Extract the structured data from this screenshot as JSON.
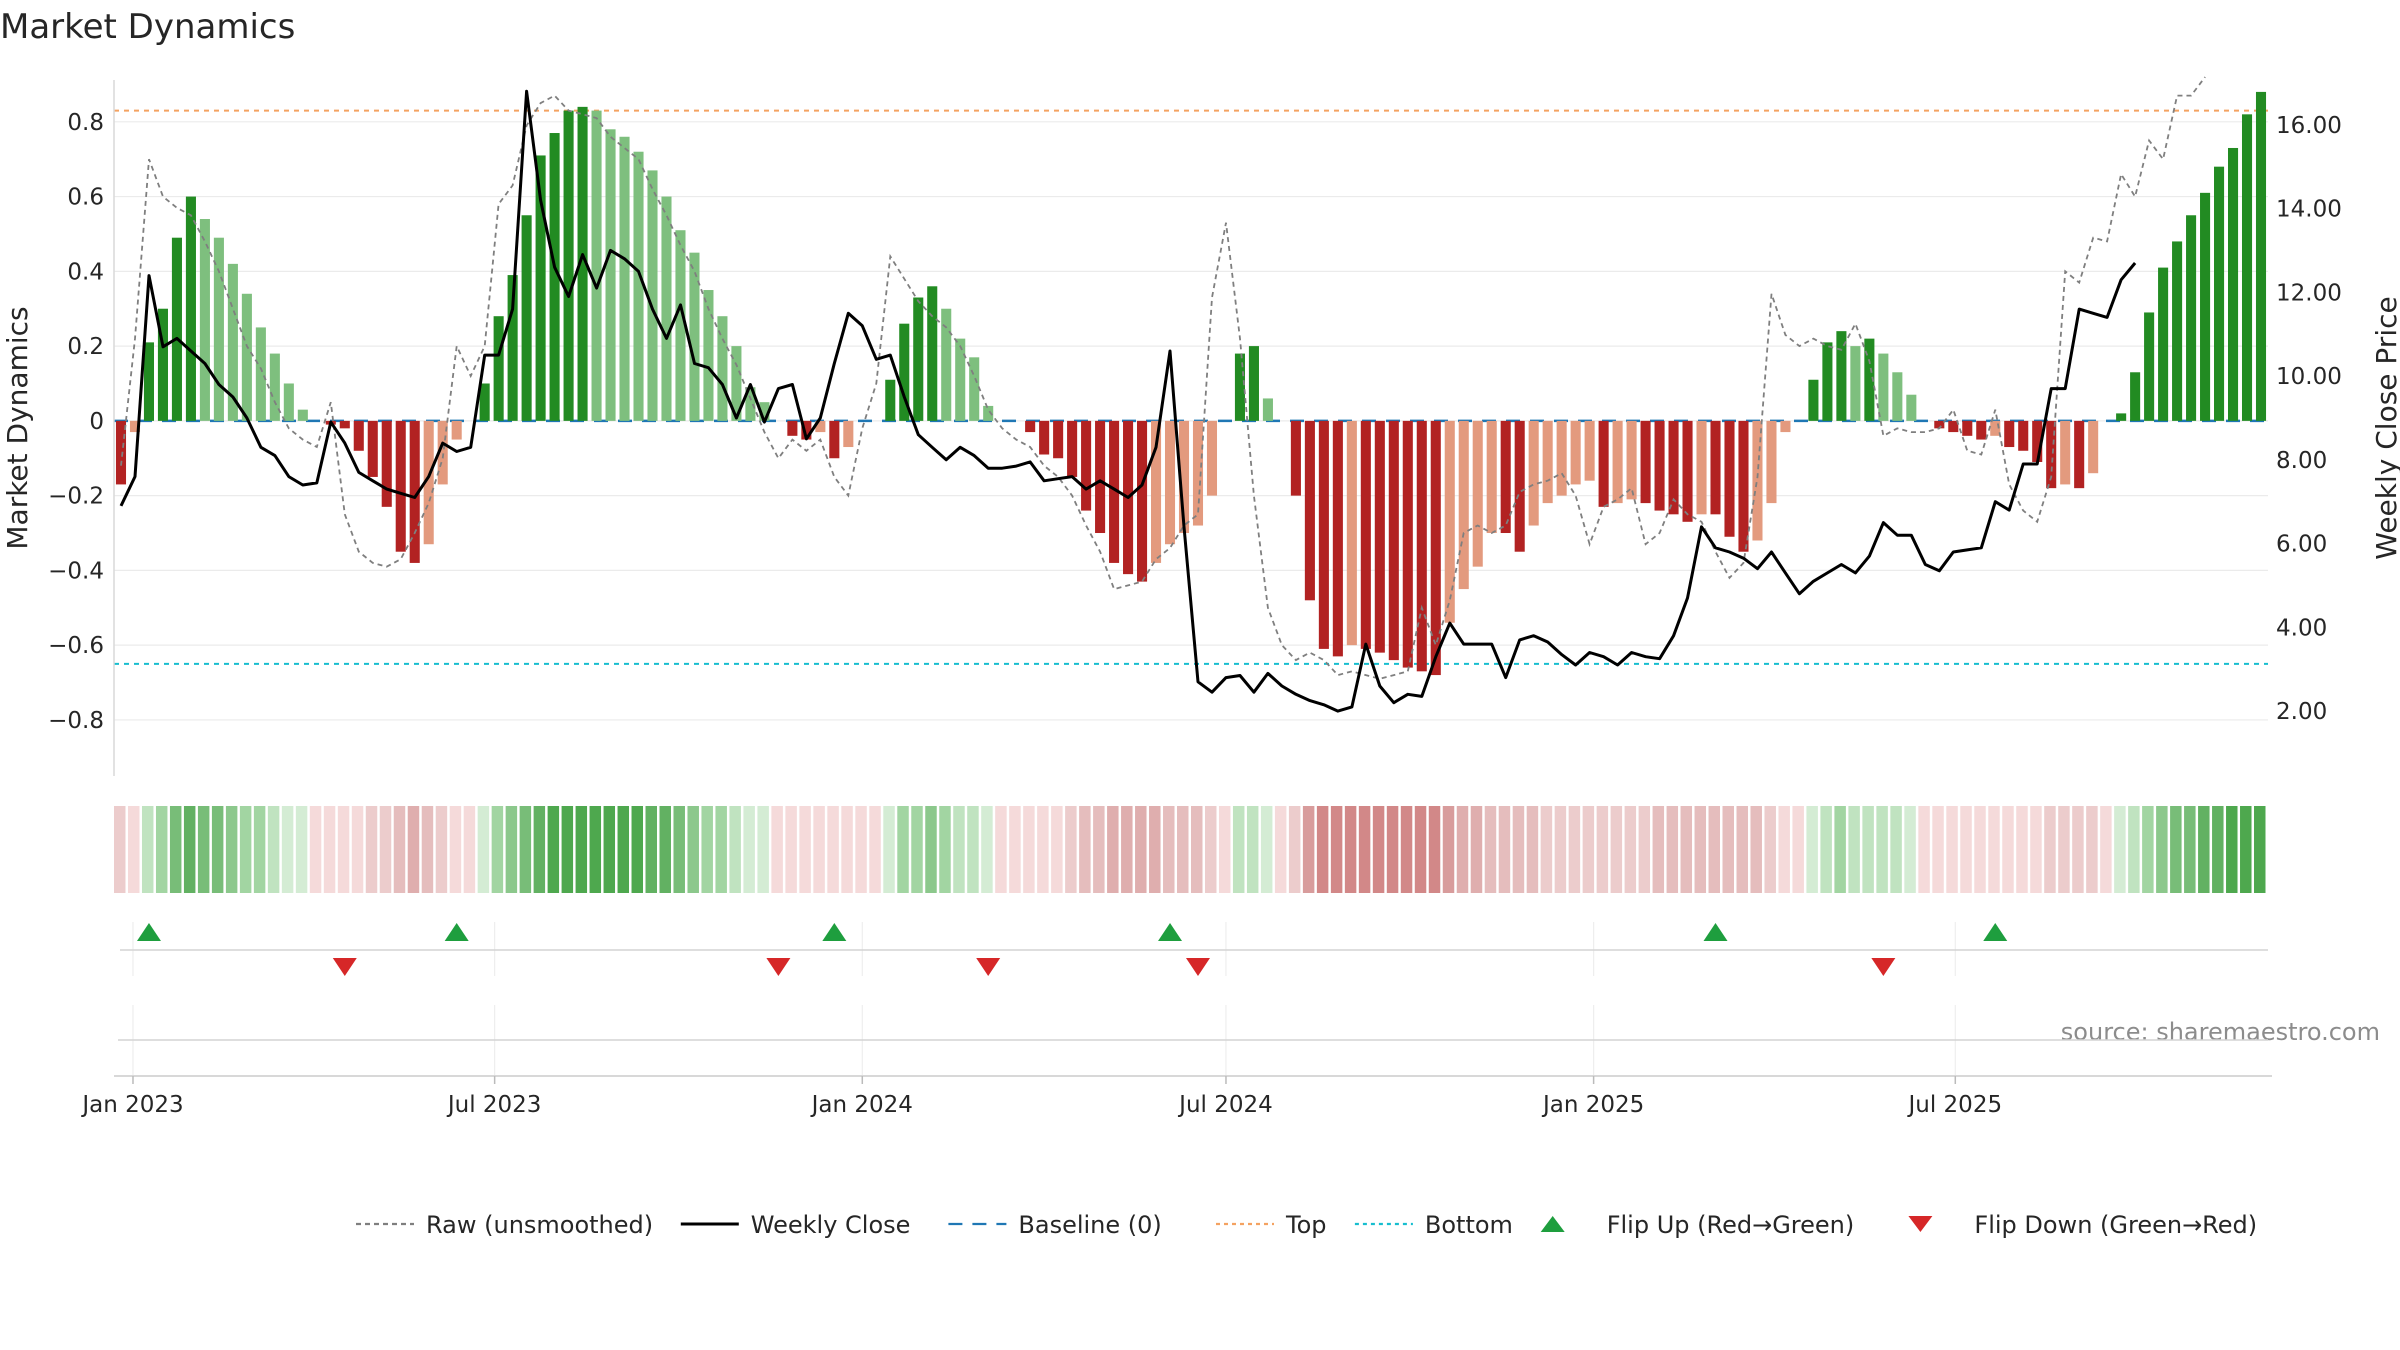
{
  "chart_data": {
    "type": "bar",
    "title": "Market Dynamics",
    "ylabel_left": "Market Dynamics",
    "ylabel_right": "Weekly Close Price",
    "source": "source: sharemaestro.com",
    "left_ylim": [
      -0.95,
      0.96
    ],
    "left_yticks": [
      -0.8,
      -0.6,
      -0.4,
      -0.2,
      0,
      0.2,
      0.4,
      0.6,
      0.8
    ],
    "left_ytick_labels": [
      "−0.8",
      "−0.6",
      "−0.4",
      "−0.2",
      "0",
      "0.2",
      "0.4",
      "0.6",
      "0.8"
    ],
    "right_ylim": [
      0.45,
      17.5
    ],
    "right_yticks": [
      2,
      4,
      6,
      8,
      10,
      12,
      14,
      16
    ],
    "right_ytick_labels": [
      "2.00",
      "4.00",
      "6.00",
      "8.00",
      "10.00",
      "12.00",
      "14.00",
      "16.00"
    ],
    "x_start": "2022-12-26",
    "x_ticks": [
      {
        "date": "2023-01-01",
        "label": "Jan 2023"
      },
      {
        "date": "2023-07-01",
        "label": "Jul 2023"
      },
      {
        "date": "2024-01-01",
        "label": "Jan 2024"
      },
      {
        "date": "2024-07-01",
        "label": "Jul 2024"
      },
      {
        "date": "2025-01-01",
        "label": "Jan 2025"
      },
      {
        "date": "2025-07-01",
        "label": "Jul 2025"
      }
    ],
    "top_level": 0.83,
    "bottom_level": -0.65,
    "grid": true,
    "legend_position": "bottom-center",
    "dynamics": [
      -0.17,
      -0.03,
      0.21,
      0.3,
      0.49,
      0.6,
      0.54,
      0.49,
      0.42,
      0.34,
      0.25,
      0.18,
      0.1,
      0.03,
      0,
      -0.01,
      -0.02,
      -0.08,
      -0.15,
      -0.23,
      -0.35,
      -0.38,
      -0.33,
      -0.17,
      -0.05,
      0,
      0.1,
      0.28,
      0.39,
      0.55,
      0.71,
      0.77,
      0.83,
      0.84,
      0.83,
      0.78,
      0.76,
      0.72,
      0.67,
      0.6,
      0.51,
      0.45,
      0.35,
      0.28,
      0.2,
      0.09,
      0.05,
      0,
      -0.04,
      -0.05,
      -0.03,
      -0.1,
      -0.07,
      0,
      0,
      0.11,
      0.26,
      0.33,
      0.36,
      0.3,
      0.22,
      0.17,
      0.04,
      0,
      0,
      -0.03,
      -0.09,
      -0.1,
      -0.15,
      -0.24,
      -0.3,
      -0.38,
      -0.41,
      -0.43,
      -0.38,
      -0.33,
      -0.3,
      -0.28,
      -0.2,
      0,
      0.18,
      0.2,
      0.06,
      0,
      -0.2,
      -0.48,
      -0.61,
      -0.63,
      -0.6,
      -0.61,
      -0.62,
      -0.64,
      -0.66,
      -0.67,
      -0.68,
      -0.54,
      -0.45,
      -0.39,
      -0.3,
      -0.3,
      -0.35,
      -0.28,
      -0.22,
      -0.2,
      -0.17,
      -0.16,
      -0.23,
      -0.22,
      -0.21,
      -0.22,
      -0.24,
      -0.25,
      -0.27,
      -0.25,
      -0.25,
      -0.31,
      -0.35,
      -0.32,
      -0.22,
      -0.03,
      0,
      0.11,
      0.21,
      0.24,
      0.2,
      0.22,
      0.18,
      0.13,
      0.07,
      0,
      -0.02,
      -0.03,
      -0.04,
      -0.05,
      -0.04,
      -0.07,
      -0.08,
      -0.11,
      -0.18,
      -0.17,
      -0.18,
      -0.14,
      0,
      0.02,
      0.13,
      0.29,
      0.41,
      0.48,
      0.55,
      0.61,
      0.68,
      0.73,
      0.82,
      0.88
    ],
    "raw": [
      -0.12,
      0.22,
      0.7,
      0.6,
      0.57,
      0.55,
      0.48,
      0.4,
      0.3,
      0.2,
      0.14,
      0.05,
      -0.02,
      -0.05,
      -0.07,
      0.05,
      -0.25,
      -0.35,
      -0.38,
      -0.39,
      -0.37,
      -0.3,
      -0.22,
      -0.1,
      0.2,
      0.12,
      0.2,
      0.58,
      0.63,
      0.79,
      0.85,
      0.87,
      0.83,
      0.82,
      0.81,
      0.76,
      0.73,
      0.7,
      0.62,
      0.55,
      0.47,
      0.4,
      0.3,
      0.22,
      0.15,
      0.06,
      -0.03,
      -0.1,
      -0.05,
      -0.08,
      -0.05,
      -0.15,
      -0.2,
      -0.02,
      0.1,
      0.44,
      0.38,
      0.32,
      0.28,
      0.25,
      0.2,
      0.12,
      0.03,
      -0.02,
      -0.05,
      -0.07,
      -0.12,
      -0.15,
      -0.2,
      -0.28,
      -0.35,
      -0.45,
      -0.44,
      -0.43,
      -0.37,
      -0.34,
      -0.28,
      -0.25,
      0.33,
      0.53,
      0.22,
      -0.2,
      -0.5,
      -0.6,
      -0.64,
      -0.62,
      -0.64,
      -0.68,
      -0.67,
      -0.68,
      -0.69,
      -0.68,
      -0.67,
      -0.5,
      -0.6,
      -0.48,
      -0.3,
      -0.28,
      -0.3,
      -0.28,
      -0.19,
      -0.17,
      -0.16,
      -0.14,
      -0.2,
      -0.33,
      -0.23,
      -0.21,
      -0.18,
      -0.33,
      -0.3,
      -0.21,
      -0.25,
      -0.27,
      -0.35,
      -0.42,
      -0.38,
      -0.15,
      0.34,
      0.23,
      0.2,
      0.22,
      0.2,
      0.19,
      0.26,
      0.16,
      -0.04,
      -0.02,
      -0.03,
      -0.03,
      -0.02,
      0.03,
      -0.08,
      -0.09,
      0.03,
      -0.17,
      -0.24,
      -0.27,
      -0.15,
      0.4,
      0.37,
      0.49,
      0.48,
      0.66,
      0.6,
      0.75,
      0.7,
      0.87,
      0.87,
      0.92
    ],
    "close": [
      6.9,
      7.6,
      12.4,
      10.7,
      10.9,
      10.6,
      10.3,
      9.8,
      9.5,
      9.0,
      8.3,
      8.1,
      7.6,
      7.4,
      7.45,
      8.9,
      8.4,
      7.7,
      7.5,
      7.3,
      7.2,
      7.1,
      7.6,
      8.4,
      8.2,
      8.3,
      10.5,
      10.5,
      11.6,
      16.8,
      14.2,
      12.6,
      11.9,
      12.9,
      12.1,
      13.0,
      12.8,
      12.5,
      11.6,
      10.9,
      11.7,
      10.3,
      10.2,
      9.8,
      9.0,
      9.8,
      8.9,
      9.7,
      9.8,
      8.5,
      9.0,
      10.3,
      11.5,
      11.2,
      10.4,
      10.5,
      9.5,
      8.6,
      8.3,
      8.0,
      8.3,
      8.1,
      7.8,
      7.8,
      7.85,
      7.95,
      7.5,
      7.55,
      7.6,
      7.3,
      7.5,
      7.3,
      7.1,
      7.4,
      8.3,
      10.6,
      6.4,
      2.7,
      2.45,
      2.8,
      2.85,
      2.45,
      2.9,
      2.6,
      2.4,
      2.25,
      2.15,
      2.0,
      2.1,
      3.6,
      2.6,
      2.2,
      2.4,
      2.35,
      3.3,
      4.1,
      3.6,
      3.6,
      3.6,
      2.8,
      3.7,
      3.8,
      3.65,
      3.35,
      3.1,
      3.4,
      3.3,
      3.1,
      3.4,
      3.3,
      3.25,
      3.8,
      4.7,
      6.4,
      5.9,
      5.8,
      5.65,
      5.4,
      5.8,
      5.3,
      4.8,
      5.1,
      5.3,
      5.5,
      5.3,
      5.7,
      6.5,
      6.2,
      6.2,
      5.5,
      5.35,
      5.8,
      5.85,
      5.9,
      7.0,
      6.8,
      7.9,
      7.9,
      9.7,
      9.7,
      11.6,
      11.5,
      11.4,
      12.3,
      12.7
    ],
    "state_colors": [
      "#7ebf7e",
      "#228b22",
      "#e39a7e",
      "#b22222"
    ],
    "heat_palette": {
      "green": [
        "#d4ecd4",
        "#c0e3c0",
        "#a2d5a2",
        "#8cc88c",
        "#78bd78",
        "#62b162",
        "#4ea84e"
      ],
      "red": [
        "#f5dada",
        "#eccccc",
        "#e5bdbd",
        "#dfaeae",
        "#d89c9c",
        "#d28888",
        "#cc7a7a"
      ]
    },
    "flip_up": [
      {
        "date": "2023-01-09"
      },
      {
        "date": "2023-06-12"
      },
      {
        "date": "2023-12-18"
      },
      {
        "date": "2024-06-03"
      },
      {
        "date": "2025-03-03"
      },
      {
        "date": "2025-07-21"
      }
    ],
    "flip_down": [
      {
        "date": "2023-04-17"
      },
      {
        "date": "2023-11-20"
      },
      {
        "date": "2024-03-04"
      },
      {
        "date": "2024-06-17"
      },
      {
        "date": "2025-05-26"
      }
    ],
    "legend": [
      {
        "label": "Raw (unsmoothed)",
        "kind": "dash",
        "color": "#7f7f7f"
      },
      {
        "label": "Weekly Close",
        "kind": "line",
        "color": "#000000"
      },
      {
        "label": "Baseline (0)",
        "kind": "longdash",
        "color": "#1f77b4"
      },
      {
        "label": "Top",
        "kind": "dot",
        "color": "#f4a261"
      },
      {
        "label": "Bottom",
        "kind": "dot",
        "color": "#17becf"
      },
      {
        "label": "Flip Up (Red→Green)",
        "kind": "tri-up",
        "color": "#1e9e3e"
      },
      {
        "label": "Flip Down (Green→Red)",
        "kind": "tri-down",
        "color": "#d62728"
      }
    ]
  }
}
